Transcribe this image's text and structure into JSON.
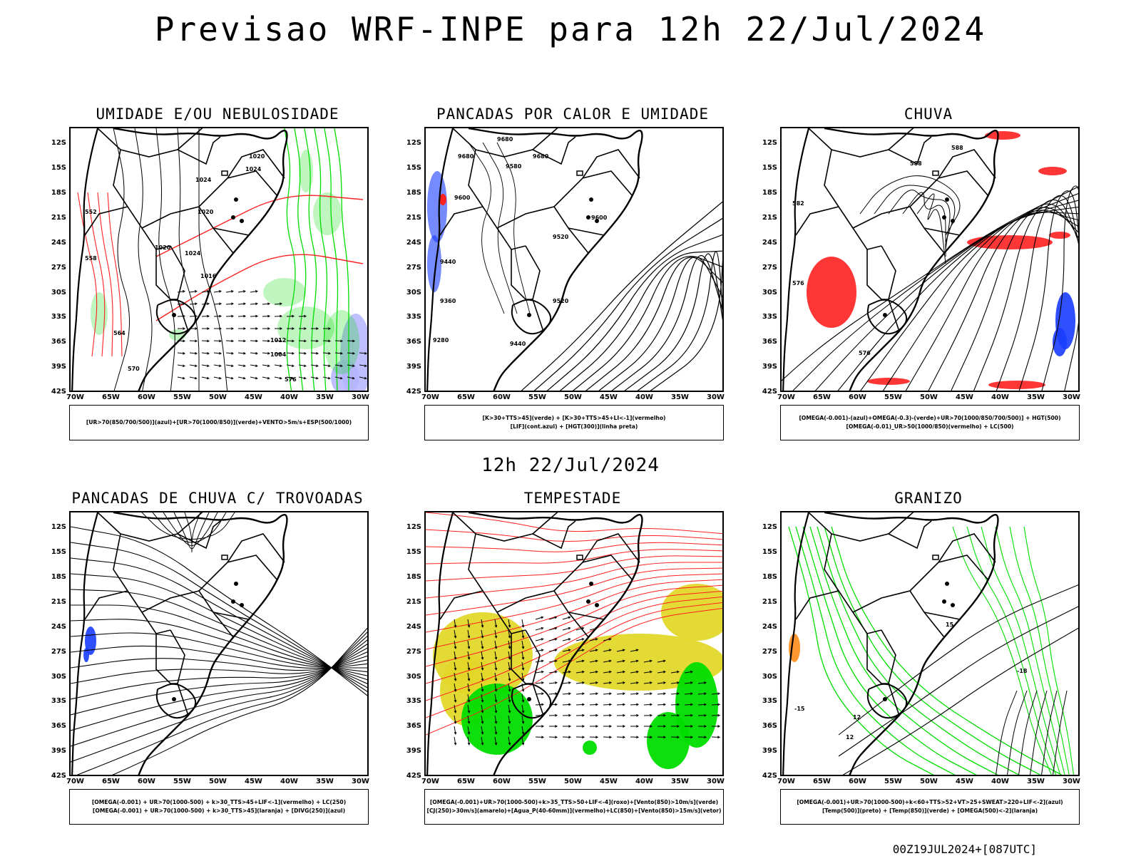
{
  "header": {
    "title": "Previsao WRF-INPE  para 12h 22/Jul/2024",
    "row_caption": "12h 22/Jul/2024",
    "footer": "00Z19JUL2024+[087UTC]"
  },
  "axes": {
    "lat_labels": [
      "12S",
      "15S",
      "18S",
      "21S",
      "24S",
      "27S",
      "30S",
      "33S",
      "36S",
      "39S",
      "42S"
    ],
    "lon_labels": [
      "70W",
      "65W",
      "60W",
      "55W",
      "50W",
      "45W",
      "40W",
      "35W",
      "30W"
    ]
  },
  "panels": [
    {
      "title": "UMIDADE E/OU NEBULOSIDADE",
      "legend": [
        "[UR>70(850/700/500)](azul)+[UR>70(1000/850)](verde)+VENTO>5m/s+ESP(500/1000)"
      ],
      "contour_labels": [
        "1020",
        "1024",
        "1020",
        "1024",
        "1020",
        "1024",
        "1016",
        "1012",
        "1004",
        "576",
        "570",
        "564",
        "558",
        "552"
      ],
      "fields": [
        "isobars",
        "thickness",
        "rh_low",
        "rh_mid",
        "wind_vectors"
      ]
    },
    {
      "title": "PANCADAS POR CALOR E UMIDADE",
      "legend": [
        "[K>30+TTS>45](verde) + [K>30+TTS>45+LI<-1](vermelho)",
        "[LIF](cont.azul) + [HGT(300)](linha preta)"
      ],
      "contour_labels": [
        "9680",
        "9680",
        "9680",
        "9580",
        "9600",
        "9520",
        "9440",
        "9360",
        "9280",
        "9440",
        "9520",
        "9600"
      ],
      "fields": [
        "hgt300",
        "lif_contours"
      ]
    },
    {
      "title": "CHUVA",
      "legend": [
        "[OMEGA(-0.001)-(azul)+OMEGA(-0.3)-(verde)+UR>70(1000/850/700/500)] + HGT(500)",
        "[OMEGA(-0.01)_UR>50(1000/850)(vermelho) + LC(500)"
      ],
      "contour_labels": [
        "588",
        "588",
        "582",
        "576",
        "576"
      ],
      "fields": [
        "streamlines",
        "hgt500",
        "omega_red",
        "omega_blue"
      ]
    },
    {
      "title": "PANCADAS DE CHUVA C/ TROVOADAS",
      "legend": [
        "[OMEGA(-0.001) + UR>70(1000-500) + k>30_TTS>45+LIF<-1](vermelho) + LC(250)",
        "[OMEGA(-0.001) + UR>70(1000-500) + k>30_TTS>45](laranja) + [DIVG(250)](azul)"
      ],
      "contour_labels": [],
      "fields": [
        "streamlines250",
        "divg_blue"
      ]
    },
    {
      "title": "TEMPESTADE",
      "legend": [
        "[OMEGA(-0.001)+UR>70(1000-500)+k>35_TTS>50+LIF<-4](roxo)+[Vento(850)>10m/s](verde)",
        "[CJ(250)>30m/s](amarelo)+[Agua_P(40-60mm)](vermelho)+LC(850)+[Vento(850)>15m/s](vetor)"
      ],
      "contour_labels": [],
      "fields": [
        "jet_yellow",
        "wind_green",
        "streamlines_red",
        "vectors"
      ]
    },
    {
      "title": "GRANIZO",
      "legend": [
        "[OMEGA(-0.001)+UR>70(1000-500)+k<60+TTS>52+VT>25+SWEAT>220+LIF<-2](azul)",
        "[Temp(500)](preto) + [Temp(850)](verde) + [OMEGA(500)<-2](laranja)"
      ],
      "contour_labels": [
        "-18",
        "-15",
        "12",
        "12",
        "15"
      ],
      "fields": [
        "temp500",
        "temp850",
        "omega_orange"
      ]
    }
  ],
  "colors": {
    "coast": "#000000",
    "green": "#00dd00",
    "red": "#ff2020",
    "blue": "#1a3cff",
    "yellow": "#e3d82a",
    "lavender": "#b4b4ff",
    "orange": "#ff8c1a"
  }
}
